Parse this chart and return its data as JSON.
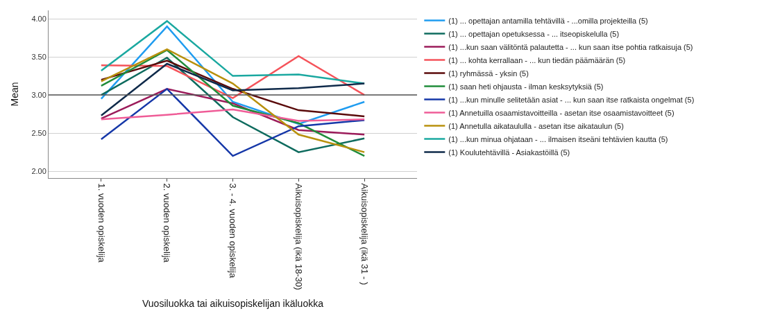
{
  "chart_data": {
    "type": "line",
    "xlabel": "Vuosiluokka tai aikuisopiskelijan ikäluokka",
    "ylabel": "Mean",
    "categories": [
      "1. vuoden opiskelija",
      "2. vuoden opiskelija",
      "3. - 4. vuoden opiskelija",
      "Aikuisopiskelija (ikä 18-30)",
      "Aikuisopiskelija (ikä 31 - )"
    ],
    "ylim": [
      1.91,
      4.11
    ],
    "yticks": [
      {
        "value": 2,
        "label": "2.00"
      },
      {
        "value": 2.5,
        "label": "2.50"
      },
      {
        "value": 3,
        "label": "3.00"
      },
      {
        "value": 3.5,
        "label": "3.50"
      },
      {
        "value": 4,
        "label": "4.00"
      }
    ],
    "grid": "y",
    "legend": "right",
    "marker": "none",
    "line_style": "solid",
    "ref_lines": [
      {
        "axis": "y",
        "value": 3,
        "color": "#555555"
      }
    ],
    "series": [
      {
        "name": "(1) ... opettajan antamilla tehtävillä - ...omilla projekteilla (5)",
        "color": "#1f9cf0",
        "values": [
          2.95,
          3.9,
          2.91,
          2.62,
          2.91
        ]
      },
      {
        "name": "(1) ... opettajan opetuksessa - ... itseopiskelulla (5)",
        "color": "#0e6b5e",
        "values": [
          3.0,
          3.49,
          2.71,
          2.25,
          2.43
        ]
      },
      {
        "name": "(1) ...kun saan välitöntä palautetta - ... kun saan itse pohtia ratkaisuja (5)",
        "color": "#9b1b5a",
        "values": [
          2.69,
          3.08,
          2.89,
          2.54,
          2.48
        ]
      },
      {
        "name": "(1) ... kohta kerrallaan - ... kun tiedän päämäärän (5)",
        "color": "#f5535a",
        "values": [
          3.39,
          3.38,
          2.96,
          3.51,
          3.0
        ]
      },
      {
        "name": "(1) ryhmässä - yksin (5)",
        "color": "#5a0a0a",
        "values": [
          3.2,
          3.45,
          3.08,
          2.8,
          2.72
        ]
      },
      {
        "name": "(1) saan heti ohjausta - ilman kesksytyksiä (5)",
        "color": "#1f8c3a",
        "values": [
          3.12,
          3.59,
          2.86,
          2.63,
          2.2
        ]
      },
      {
        "name": "(1) ...kun minulle selitetään asiat - ... kun saan itse ratkaista ongelmat (5)",
        "color": "#1537a8",
        "values": [
          2.42,
          3.08,
          2.2,
          2.59,
          2.67
        ]
      },
      {
        "name": "(1) Annetuilla osaamistavoitteilla - asetan itse osaamistavoitteet (5)",
        "color": "#ef5c97",
        "values": [
          2.68,
          2.74,
          2.81,
          2.66,
          2.68
        ]
      },
      {
        "name": "(1) Annetulla aikataululla - asetan itse aikataulun (5)",
        "color": "#b8900c",
        "values": [
          3.18,
          3.6,
          3.15,
          2.48,
          2.25
        ]
      },
      {
        "name": "(1) ...kun minua ohjataan - ... ilmaisen itseäni tehtävien kautta (5)",
        "color": "#1aa8a0",
        "values": [
          3.32,
          3.97,
          3.25,
          3.27,
          3.15
        ]
      },
      {
        "name": "(1) Koulutehtävillä - Asiakastöillä (5)",
        "color": "#0f2a4a",
        "values": [
          2.73,
          3.41,
          3.06,
          3.09,
          3.15
        ]
      }
    ]
  }
}
